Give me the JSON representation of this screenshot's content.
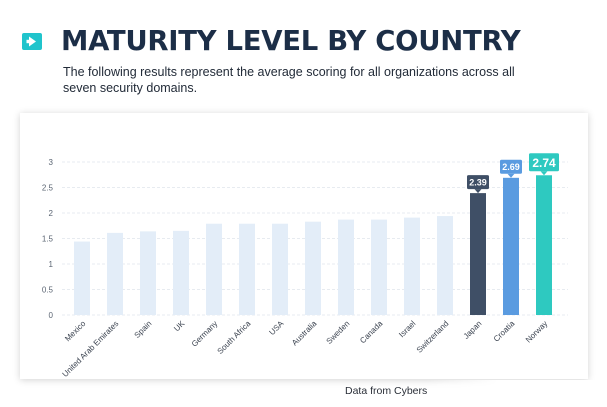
{
  "header": {
    "title": "MATURITY LEVEL BY COUNTRY",
    "subtitle": "The following results represent the average scoring for all organizations across all seven security domains."
  },
  "footer": {
    "source": "Data from Cybers"
  },
  "colors": {
    "accent": "#20c4cc",
    "bar_default": "#e3edf8",
    "japan": "#3f4f66",
    "croatia": "#5a9be0",
    "norway": "#2ec9c0",
    "title": "#1c2e47"
  },
  "chart_data": {
    "type": "bar",
    "title": "",
    "xlabel": "",
    "ylabel": "",
    "ylim": [
      0,
      3
    ],
    "yticks": [
      "0",
      "0.5",
      "1",
      "1.5",
      "2",
      "2.5",
      "3"
    ],
    "grid": true,
    "categories": [
      "Mexico",
      "United Arab Emirates",
      "Spain",
      "UK",
      "Germany",
      "South Africa",
      "USA",
      "Australia",
      "Sweden",
      "Canada",
      "Israel",
      "Switzerland",
      "Japan",
      "Croatia",
      "Norway"
    ],
    "values": [
      1.44,
      1.61,
      1.64,
      1.65,
      1.79,
      1.79,
      1.79,
      1.83,
      1.87,
      1.87,
      1.91,
      1.94,
      2.39,
      2.69,
      2.74
    ],
    "data_labels": [
      null,
      null,
      null,
      null,
      null,
      null,
      null,
      null,
      null,
      null,
      null,
      null,
      "2.39",
      "2.69",
      "2.74"
    ],
    "bar_colors": [
      "#e3edf8",
      "#e3edf8",
      "#e3edf8",
      "#e3edf8",
      "#e3edf8",
      "#e3edf8",
      "#e3edf8",
      "#e3edf8",
      "#e3edf8",
      "#e3edf8",
      "#e3edf8",
      "#e3edf8",
      "#3f4f66",
      "#5a9be0",
      "#2ec9c0"
    ]
  }
}
